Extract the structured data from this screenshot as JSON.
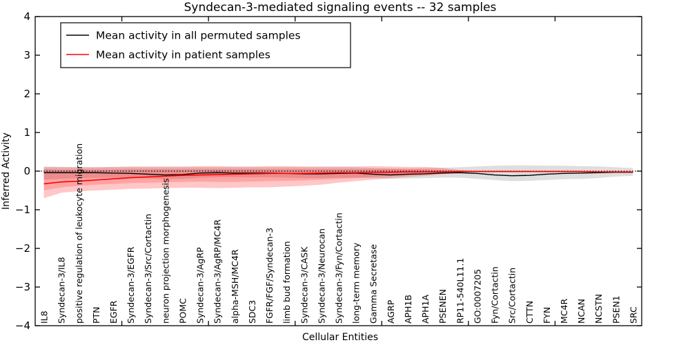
{
  "window": {
    "title": "Syndecan-3-mediated signaling events -- 32 samples"
  },
  "colors": {
    "permuted_line": "#000000",
    "patient_line": "#ff0000",
    "permuted_band": "rgba(0,0,0,0.13)",
    "patient_band_outer": "rgba(255,0,0,0.22)",
    "patient_band_inner": "rgba(255,0,0,0.18)",
    "background": "#ffffff",
    "frame": "#000000"
  },
  "legend": {
    "entries": [
      {
        "label": "Mean activity in all permuted samples",
        "color": "#000000"
      },
      {
        "label": "Mean activity in patient samples",
        "color": "#ff0000"
      }
    ]
  },
  "chart_data": {
    "type": "line",
    "title": "Syndecan-3-mediated signaling events -- 32 samples",
    "xlabel": "Cellular Entities",
    "ylabel": "Inferred Activity",
    "ylim": [
      -4,
      4
    ],
    "yticks": [
      -4,
      -3,
      -2,
      -1,
      0,
      1,
      2,
      3,
      4
    ],
    "xtick_step": 5,
    "grid": false,
    "zero_line": {
      "style": "dotted",
      "color": "#000000",
      "y": 0
    },
    "legend_position": "upper-left",
    "categories": [
      "IL8",
      "Syndecan-3/IL8",
      "positive regulation of leukocyte migration",
      "PTN",
      "EGFR",
      "Syndecan-3/EGFR",
      "Syndecan-3/Src/Cortactin",
      "neuron projection morphogenesis",
      "POMC",
      "Syndecan-3/AgRP",
      "Syndecan-3/AgRP/MC4R",
      "alpha-MSH/MC4R",
      "SDC3",
      "FGFR/FGF/Syndecan-3",
      "limb bud formation",
      "Syndecan-3/CASK",
      "Syndecan-3/Neurocan",
      "Syndecan-3/Fyn/Cortactin",
      "long-term memory",
      "Gamma Secretase",
      "AGRP",
      "APH1B",
      "APH1A",
      "PSENEN",
      "RP11-540L11.1",
      "GO:0007205",
      "Fyn/Cortactin",
      "Src/Cortactin",
      "CTTN",
      "FYN",
      "MC4R",
      "NCAN",
      "NCSTN",
      "PSEN1",
      "SRC"
    ],
    "series": [
      {
        "name": "Mean activity in all permuted samples",
        "color": "#000000",
        "values": [
          -0.04,
          -0.04,
          -0.04,
          -0.04,
          -0.05,
          -0.06,
          -0.08,
          -0.1,
          -0.09,
          -0.05,
          -0.04,
          -0.05,
          -0.05,
          -0.05,
          -0.06,
          -0.07,
          -0.07,
          -0.06,
          -0.05,
          -0.08,
          -0.1,
          -0.08,
          -0.07,
          -0.05,
          -0.04,
          -0.06,
          -0.1,
          -0.12,
          -0.11,
          -0.08,
          -0.06,
          -0.05,
          -0.04,
          -0.03,
          -0.03
        ]
      },
      {
        "name": "Mean activity in patient samples",
        "color": "#ff0000",
        "values": [
          -0.33,
          -0.28,
          -0.26,
          -0.23,
          -0.2,
          -0.17,
          -0.15,
          -0.13,
          -0.11,
          -0.1,
          -0.09,
          -0.08,
          -0.07,
          -0.06,
          -0.06,
          -0.06,
          -0.05,
          -0.04,
          -0.04,
          -0.03,
          -0.03,
          -0.02,
          -0.02,
          -0.02,
          -0.01,
          -0.01,
          -0.01,
          -0.01,
          -0.01,
          -0.01,
          -0.01,
          -0.01,
          -0.02,
          -0.02,
          -0.02
        ]
      }
    ],
    "bands": [
      {
        "name": "permuted-spread",
        "color": "rgba(0,0,0,0.13)",
        "upper": [
          0.12,
          0.11,
          0.1,
          0.1,
          0.1,
          0.1,
          0.1,
          0.1,
          0.1,
          0.1,
          0.1,
          0.1,
          0.1,
          0.1,
          0.1,
          0.1,
          0.1,
          0.1,
          0.1,
          0.08,
          0.07,
          0.07,
          0.08,
          0.09,
          0.1,
          0.12,
          0.14,
          0.15,
          0.15,
          0.14,
          0.14,
          0.13,
          0.12,
          0.1,
          0.08
        ],
        "lower": [
          -0.22,
          -0.2,
          -0.18,
          -0.17,
          -0.17,
          -0.17,
          -0.19,
          -0.21,
          -0.2,
          -0.17,
          -0.16,
          -0.16,
          -0.16,
          -0.16,
          -0.17,
          -0.18,
          -0.18,
          -0.17,
          -0.17,
          -0.18,
          -0.2,
          -0.19,
          -0.18,
          -0.17,
          -0.17,
          -0.2,
          -0.23,
          -0.26,
          -0.25,
          -0.23,
          -0.21,
          -0.2,
          -0.18,
          -0.14,
          -0.12
        ]
      },
      {
        "name": "patient-spread-outer",
        "color": "rgba(255,0,0,0.22)",
        "upper": [
          0.1,
          0.1,
          0.1,
          0.1,
          0.11,
          0.12,
          0.12,
          0.12,
          0.12,
          0.13,
          0.13,
          0.12,
          0.12,
          0.13,
          0.13,
          0.12,
          0.12,
          0.12,
          0.12,
          0.13,
          0.12,
          0.11,
          0.11,
          0.08,
          0.03,
          0.0,
          -0.01,
          -0.01,
          -0.01,
          -0.01,
          -0.01,
          -0.01,
          -0.02,
          -0.02,
          -0.02
        ],
        "lower": [
          -0.7,
          -0.56,
          -0.52,
          -0.5,
          -0.48,
          -0.46,
          -0.45,
          -0.44,
          -0.43,
          -0.43,
          -0.44,
          -0.43,
          -0.42,
          -0.42,
          -0.4,
          -0.38,
          -0.35,
          -0.3,
          -0.26,
          -0.22,
          -0.18,
          -0.15,
          -0.12,
          -0.08,
          -0.04,
          -0.01,
          -0.01,
          -0.01,
          -0.01,
          -0.01,
          -0.01,
          -0.01,
          -0.02,
          -0.02,
          -0.02
        ]
      },
      {
        "name": "patient-spread-inner",
        "color": "rgba(255,0,0,0.18)",
        "upper": [
          0.05,
          0.04,
          0.04,
          0.04,
          0.04,
          0.05,
          0.05,
          0.05,
          0.05,
          0.05,
          0.05,
          0.05,
          0.05,
          0.05,
          0.05,
          0.05,
          0.05,
          0.05,
          0.05,
          0.06,
          0.06,
          0.05,
          0.05,
          0.03,
          0.01,
          0.0,
          -0.01,
          -0.01,
          -0.01,
          -0.01,
          -0.01,
          -0.01,
          -0.02,
          -0.02,
          -0.02
        ],
        "lower": [
          -0.5,
          -0.42,
          -0.38,
          -0.35,
          -0.33,
          -0.31,
          -0.3,
          -0.29,
          -0.28,
          -0.27,
          -0.28,
          -0.28,
          -0.27,
          -0.26,
          -0.25,
          -0.24,
          -0.22,
          -0.2,
          -0.18,
          -0.15,
          -0.13,
          -0.11,
          -0.09,
          -0.06,
          -0.03,
          -0.01,
          -0.01,
          -0.01,
          -0.01,
          -0.01,
          -0.01,
          -0.01,
          -0.02,
          -0.02,
          -0.02
        ]
      }
    ]
  }
}
